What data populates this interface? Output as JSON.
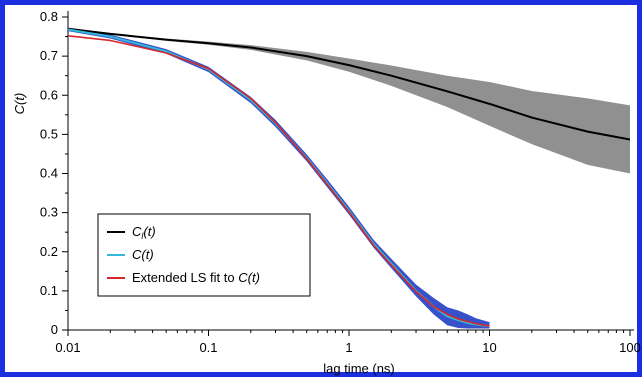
{
  "chart_data": {
    "type": "line",
    "x_scale": "log",
    "xlim": [
      0.01,
      100
    ],
    "ylim": [
      0,
      0.8
    ],
    "xlabel": "lag time (ns)",
    "ylabel": "C(t)",
    "x_ticks": [
      "0.01",
      "0.1",
      "1",
      "10",
      "100"
    ],
    "y_ticks": [
      "0",
      "0.1",
      "0.2",
      "0.3",
      "0.4",
      "0.5",
      "0.6",
      "0.7",
      "0.8"
    ],
    "legend_position": "bottom-left",
    "series": [
      {
        "name": "C_l(t)",
        "legend_main": "C",
        "legend_sub": "l",
        "legend_tail": "(t)",
        "color": "#000000",
        "band_color": "#8a8a8a",
        "x": [
          0.01,
          0.02,
          0.05,
          0.1,
          0.2,
          0.5,
          1,
          2,
          5,
          10,
          20,
          50,
          100
        ],
        "y": [
          0.77,
          0.757,
          0.742,
          0.733,
          0.722,
          0.7,
          0.677,
          0.65,
          0.61,
          0.578,
          0.543,
          0.507,
          0.487
        ],
        "lo": [
          0.768,
          0.755,
          0.739,
          0.729,
          0.716,
          0.689,
          0.66,
          0.624,
          0.57,
          0.522,
          0.475,
          0.422,
          0.4
        ],
        "hi": [
          0.772,
          0.759,
          0.745,
          0.737,
          0.728,
          0.711,
          0.694,
          0.676,
          0.65,
          0.634,
          0.611,
          0.592,
          0.574
        ]
      },
      {
        "name": "C(t)",
        "legend_main": "C",
        "legend_sub": "",
        "legend_tail": "(t)",
        "color": "#33b8d8",
        "band_color": "#2c48c8",
        "x": [
          0.01,
          0.02,
          0.05,
          0.1,
          0.2,
          0.3,
          0.5,
          0.7,
          1,
          1.5,
          2,
          3,
          4,
          5,
          6,
          7,
          8,
          10
        ],
        "y": [
          0.768,
          0.75,
          0.712,
          0.666,
          0.588,
          0.528,
          0.44,
          0.375,
          0.305,
          0.22,
          0.17,
          0.1,
          0.06,
          0.035,
          0.025,
          0.018,
          0.014,
          0.01
        ],
        "lo": [
          0.764,
          0.745,
          0.706,
          0.659,
          0.58,
          0.519,
          0.431,
          0.365,
          0.295,
          0.21,
          0.158,
          0.086,
          0.04,
          0.012,
          0.005,
          0.004,
          0.004,
          0.004
        ],
        "hi": [
          0.772,
          0.755,
          0.718,
          0.673,
          0.596,
          0.537,
          0.449,
          0.385,
          0.315,
          0.23,
          0.182,
          0.116,
          0.082,
          0.058,
          0.05,
          0.04,
          0.03,
          0.02
        ]
      },
      {
        "name": "Extended LS fit to C(t)",
        "legend_main": "Extended LS fit to ",
        "legend_sub": "",
        "legend_tail": "C(t)",
        "color": "#d8262a",
        "x": [
          0.01,
          0.02,
          0.05,
          0.1,
          0.2,
          0.3,
          0.5,
          0.7,
          1,
          1.5,
          2,
          3,
          4,
          5,
          6,
          8,
          10
        ],
        "y": [
          0.752,
          0.74,
          0.708,
          0.668,
          0.592,
          0.53,
          0.438,
          0.372,
          0.302,
          0.216,
          0.166,
          0.098,
          0.06,
          0.04,
          0.028,
          0.016,
          0.01
        ]
      }
    ]
  }
}
